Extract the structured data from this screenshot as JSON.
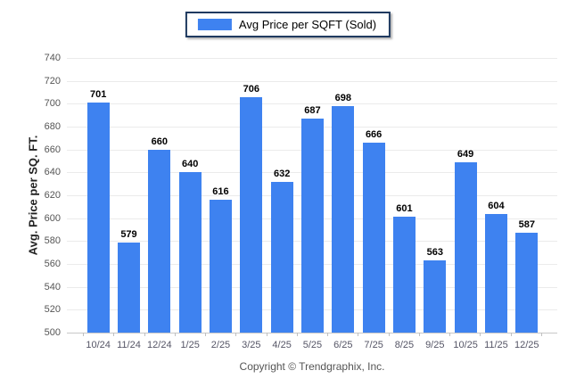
{
  "legend": {
    "label": "Avg Price per SQFT (Sold)",
    "swatch_color": "#3e82f0"
  },
  "footer": {
    "text": "Copyright © Trendgraphix, Inc."
  },
  "chart_data": {
    "type": "bar",
    "title": "",
    "series_name": "Avg Price per SQFT (Sold)",
    "categories": [
      "10/24",
      "11/24",
      "12/24",
      "1/25",
      "2/25",
      "3/25",
      "4/25",
      "5/25",
      "6/25",
      "7/25",
      "8/25",
      "9/25",
      "10/25",
      "11/25",
      "12/25"
    ],
    "values": [
      701,
      579,
      660,
      640,
      616,
      706,
      632,
      687,
      698,
      666,
      601,
      563,
      649,
      604,
      587
    ],
    "xlabel": "",
    "ylabel": "Avg. Price per SQ. FT.",
    "ylim": [
      500,
      740
    ],
    "ytick_step": 20,
    "grid": true,
    "legend_position": "top-center",
    "bar_color": "#3e82f0",
    "value_labels": true
  }
}
